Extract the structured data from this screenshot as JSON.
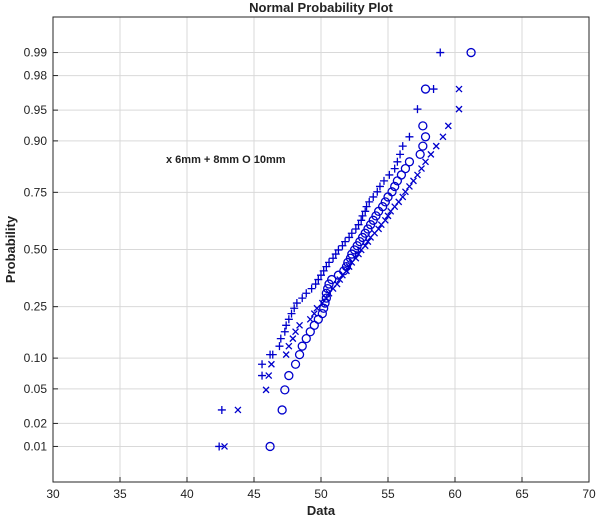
{
  "chart_data": {
    "type": "scatter",
    "title": "Normal Probability Plot",
    "xlabel": "Data",
    "ylabel": "Probability",
    "annotation": "x 6mm + 8mm O 10mm",
    "xlim": [
      30,
      70
    ],
    "x_ticks": [
      30,
      35,
      40,
      45,
      50,
      55,
      60,
      65,
      70
    ],
    "y_scale": "normal-probability",
    "ylim": [
      0.003,
      0.997
    ],
    "y_ticks": [
      0.01,
      0.02,
      0.05,
      0.1,
      0.25,
      0.5,
      0.75,
      0.9,
      0.95,
      0.98,
      0.99
    ],
    "y_tick_labels": [
      "0.01",
      "0.02",
      "0.05",
      "0.10",
      "0.25",
      "0.50",
      "0.75",
      "0.90",
      "0.95",
      "0.98",
      "0.99"
    ],
    "grid": true,
    "color": "#0000cc",
    "series": [
      {
        "marker": "x",
        "x": [
          42.8,
          43.8,
          45.9,
          46.1,
          46.3,
          47.4,
          47.6,
          47.9,
          48.1,
          48.4,
          49.2,
          49.5,
          49.7,
          50.1,
          50.4,
          50.6,
          50.9,
          51.2,
          51.4,
          51.6,
          51.9,
          52.1,
          52.3,
          52.6,
          52.8,
          53.0,
          53.3,
          53.5,
          53.7,
          54.0,
          54.3,
          54.5,
          54.8,
          55.0,
          55.2,
          55.5,
          55.8,
          56.1,
          56.3,
          56.6,
          56.9,
          57.2,
          57.5,
          57.8,
          58.2,
          58.6,
          59.1,
          59.5,
          60.3,
          60.3
        ],
        "y": [
          0.01,
          0.0291,
          0.0488,
          0.0684,
          0.0879,
          0.1074,
          0.127,
          0.1465,
          0.166,
          0.1855,
          0.2051,
          0.2246,
          0.2441,
          0.2637,
          0.2832,
          0.3027,
          0.3223,
          0.3418,
          0.3613,
          0.3809,
          0.4004,
          0.4199,
          0.4395,
          0.459,
          0.4785,
          0.498,
          0.5176,
          0.5371,
          0.5566,
          0.5762,
          0.5957,
          0.6152,
          0.6348,
          0.6543,
          0.6738,
          0.6934,
          0.7129,
          0.7324,
          0.752,
          0.7715,
          0.791,
          0.8105,
          0.8301,
          0.8496,
          0.8691,
          0.8887,
          0.9082,
          0.9277,
          0.9512,
          0.9709
        ]
      },
      {
        "marker": "+",
        "x": [
          42.4,
          42.6,
          45.6,
          45.6,
          46.2,
          46.4,
          46.9,
          47.0,
          47.3,
          47.4,
          47.6,
          47.8,
          48.0,
          48.2,
          48.6,
          48.9,
          49.3,
          49.6,
          49.8,
          50.0,
          50.2,
          50.4,
          50.6,
          50.9,
          51.1,
          51.3,
          51.6,
          51.8,
          52.1,
          52.3,
          52.6,
          52.8,
          53.0,
          53.1,
          53.3,
          53.4,
          53.6,
          53.9,
          54.2,
          54.4,
          54.7,
          55.1,
          55.5,
          55.7,
          55.9,
          56.1,
          56.6,
          57.2,
          58.9,
          58.4
        ],
        "y": [
          0.01,
          0.0291,
          0.0684,
          0.0879,
          0.1074,
          0.1074,
          0.127,
          0.1465,
          0.166,
          0.1855,
          0.2051,
          0.2246,
          0.2441,
          0.2637,
          0.2832,
          0.3027,
          0.3223,
          0.3418,
          0.3613,
          0.3809,
          0.4004,
          0.4199,
          0.4395,
          0.459,
          0.4785,
          0.498,
          0.5176,
          0.5371,
          0.5566,
          0.5762,
          0.5957,
          0.6152,
          0.6348,
          0.6543,
          0.6738,
          0.6934,
          0.7129,
          0.7324,
          0.752,
          0.7715,
          0.791,
          0.8105,
          0.8301,
          0.8496,
          0.8691,
          0.8887,
          0.9082,
          0.9512,
          0.99,
          0.9709
        ]
      },
      {
        "marker": "O",
        "x": [
          46.2,
          47.1,
          47.3,
          47.6,
          48.1,
          48.4,
          48.6,
          48.9,
          49.2,
          49.5,
          49.8,
          50.1,
          50.2,
          50.3,
          50.4,
          50.4,
          50.5,
          50.6,
          50.8,
          51.3,
          51.7,
          51.9,
          52.0,
          52.2,
          52.3,
          52.5,
          52.7,
          52.9,
          53.1,
          53.3,
          53.5,
          53.7,
          53.9,
          54.1,
          54.3,
          54.6,
          54.8,
          55.0,
          55.3,
          55.5,
          55.7,
          56.0,
          56.3,
          56.6,
          57.4,
          57.6,
          57.8,
          57.6,
          57.8,
          61.2
        ],
        "y": [
          0.01,
          0.0291,
          0.0488,
          0.0684,
          0.0879,
          0.1074,
          0.127,
          0.1465,
          0.166,
          0.1855,
          0.2051,
          0.2246,
          0.2441,
          0.2637,
          0.2832,
          0.3027,
          0.3223,
          0.3418,
          0.3613,
          0.3809,
          0.4004,
          0.4199,
          0.4395,
          0.459,
          0.4785,
          0.498,
          0.5176,
          0.5371,
          0.5566,
          0.5762,
          0.5957,
          0.6152,
          0.6348,
          0.6543,
          0.6738,
          0.6934,
          0.7129,
          0.7324,
          0.752,
          0.7715,
          0.791,
          0.8105,
          0.8301,
          0.8496,
          0.8691,
          0.8887,
          0.9082,
          0.9277,
          0.9709,
          0.99
        ]
      }
    ]
  }
}
